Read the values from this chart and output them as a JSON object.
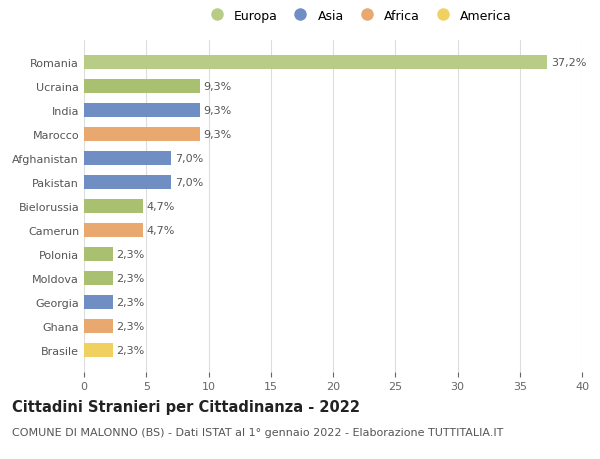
{
  "categories": [
    "Brasile",
    "Ghana",
    "Georgia",
    "Moldova",
    "Polonia",
    "Camerun",
    "Bielorussia",
    "Pakistan",
    "Afghanistan",
    "Marocco",
    "India",
    "Ucraina",
    "Romania"
  ],
  "values": [
    2.3,
    2.3,
    2.3,
    2.3,
    2.3,
    4.7,
    4.7,
    7.0,
    7.0,
    9.3,
    9.3,
    9.3,
    37.2
  ],
  "bar_colors": [
    "#f0d060",
    "#e8a870",
    "#6e8ec4",
    "#a8c070",
    "#a8c070",
    "#e8a870",
    "#a8c070",
    "#6e8ec4",
    "#6e8ec4",
    "#e8a870",
    "#6e8ec4",
    "#a8c070",
    "#b8cc88"
  ],
  "labels": [
    "2,3%",
    "2,3%",
    "2,3%",
    "2,3%",
    "2,3%",
    "4,7%",
    "4,7%",
    "7,0%",
    "7,0%",
    "9,3%",
    "9,3%",
    "9,3%",
    "37,2%"
  ],
  "xlim": [
    0,
    40
  ],
  "xticks": [
    0,
    5,
    10,
    15,
    20,
    25,
    30,
    35,
    40
  ],
  "legend_labels": [
    "Europa",
    "Asia",
    "Africa",
    "America"
  ],
  "legend_colors": [
    "#b8cc88",
    "#6e8ec4",
    "#e8a870",
    "#f0d060"
  ],
  "title": "Cittadini Stranieri per Cittadinanza - 2022",
  "subtitle": "COMUNE DI MALONNO (BS) - Dati ISTAT al 1° gennaio 2022 - Elaborazione TUTTITALIA.IT",
  "background_color": "#ffffff",
  "grid_color": "#dddddd",
  "title_fontsize": 10.5,
  "subtitle_fontsize": 8,
  "label_fontsize": 8,
  "tick_fontsize": 8,
  "legend_fontsize": 9
}
